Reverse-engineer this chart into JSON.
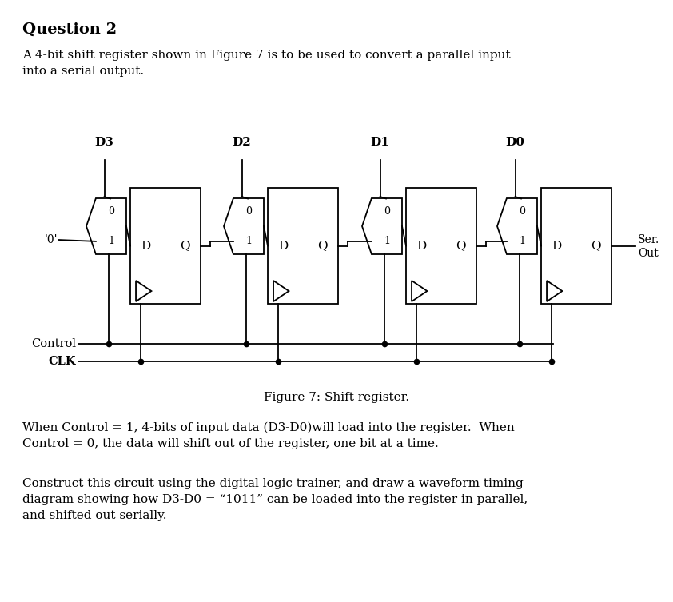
{
  "title": "Question 2",
  "intro_text": "A 4-bit shift register shown in Figure 7 is to be used to convert a parallel input\ninto a serial output.",
  "figure_caption": "Figure 7: Shift register.",
  "body_text1": "When Control = 1, 4-bits of input data (D3-D0)will load into the register.  When\nControl = 0, the data will shift out of the register, one bit at a time.",
  "body_text2": "Construct this circuit using the digital logic trainer, and draw a waveform timing\ndiagram showing how D3-D0 = “1011” can be loaded into the register in parallel,\nand shifted out serially.",
  "bg_color": "#ffffff",
  "text_color": "#000000",
  "data_inputs": [
    "D3",
    "D2",
    "D1",
    "D0"
  ],
  "zero_label": "'0'",
  "control_label": "Control",
  "clk_label": "CLK",
  "ser_label1": "Ser.",
  "ser_label2": "Out"
}
